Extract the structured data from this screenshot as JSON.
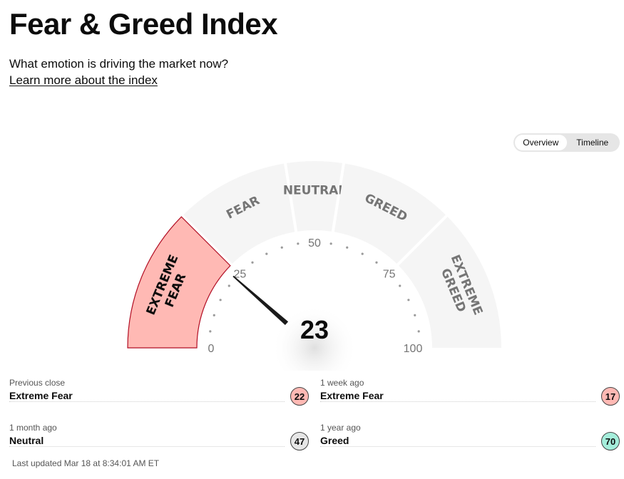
{
  "header": {
    "title": "Fear & Greed Index",
    "subtitle": "What emotion is driving the market now?",
    "learn_more": "Learn more about the index"
  },
  "view_toggle": {
    "options": [
      "Overview",
      "Timeline"
    ],
    "selected": "Overview"
  },
  "gauge": {
    "value": 23,
    "current_segment": "Extreme Fear",
    "segments": [
      {
        "lines": [
          "EXTREME",
          "FEAR"
        ],
        "range": [
          0,
          25
        ]
      },
      {
        "lines": [
          "FEAR"
        ],
        "range": [
          25,
          45
        ]
      },
      {
        "lines": [
          "NEUTRAL"
        ],
        "range": [
          45,
          55
        ]
      },
      {
        "lines": [
          "GREED"
        ],
        "range": [
          55,
          75
        ]
      },
      {
        "lines": [
          "EXTREME",
          "GREED"
        ],
        "range": [
          75,
          100
        ]
      }
    ],
    "ticks": [
      "0",
      "25",
      "50",
      "75",
      "100"
    ]
  },
  "history": [
    {
      "label": "Previous close",
      "rating": "Extreme Fear",
      "value": "22"
    },
    {
      "label": "1 week ago",
      "rating": "Extreme Fear",
      "value": "17"
    },
    {
      "label": "1 month ago",
      "rating": "Neutral",
      "value": "47"
    },
    {
      "label": "1 year ago",
      "rating": "Greed",
      "value": "70"
    }
  ],
  "last_updated": "Last updated Mar 18 at 8:34:01 AM ET",
  "colors": {
    "extreme_fear": "#ffb9b4",
    "extreme_fear_border": "#b20e24",
    "fear": "#ffb9b4",
    "neutral": "#e6e6e6",
    "greed": "#a5eedb",
    "segment_inactive": "#f5f5f5",
    "segment_text": "#757575",
    "needle": "#1a1a1a"
  }
}
